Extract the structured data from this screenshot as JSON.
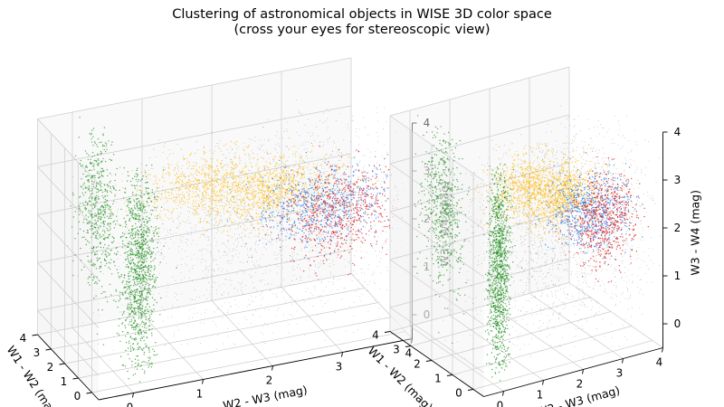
{
  "chart_data": {
    "type": "scatter",
    "projection": "3d",
    "title": "Clustering of astronomical objects in WISE 3D color space",
    "subtitle": "(cross your eyes for stereoscopic view)",
    "panels": 2,
    "grid": true,
    "xlabel": "W2 - W3 (mag)",
    "ylabel": "W1 - W2 (mag)",
    "zlabel": "W3 - W4 (mag)",
    "xlim": [
      -0.5,
      4
    ],
    "ylim": [
      -0.5,
      4
    ],
    "zlim": [
      -0.5,
      4
    ],
    "xticks": [
      "0",
      "1",
      "2",
      "3",
      "4"
    ],
    "yticks": [
      "0",
      "1",
      "2",
      "3",
      "4"
    ],
    "zticks": [
      "0",
      "1",
      "2",
      "3",
      "4"
    ],
    "series": [
      {
        "color": "#000000",
        "cx": 2.3,
        "cy": 0.6,
        "cz": 2.2,
        "sx": 1.3,
        "sy": 0.7,
        "sz": 1.3,
        "n": 2600,
        "opacity": 0.28,
        "r": 0.45
      },
      {
        "color": "#ffc020",
        "cx": 2.2,
        "cy": 1.1,
        "cz": 2.6,
        "sx": 0.5,
        "sy": 0.35,
        "sz": 0.3,
        "n": 900,
        "opacity": 0.75,
        "r": 0.7
      },
      {
        "color": "#ffc020",
        "cx": 1.2,
        "cy": 0.9,
        "cz": 3.1,
        "sx": 0.45,
        "sy": 0.3,
        "sz": 0.3,
        "n": 500,
        "opacity": 0.75,
        "r": 0.7
      },
      {
        "color": "#2a7ff0",
        "cx": 3.0,
        "cy": 1.1,
        "cz": 2.1,
        "sx": 0.45,
        "sy": 0.45,
        "sz": 0.35,
        "n": 650,
        "opacity": 0.8,
        "r": 0.7
      },
      {
        "color": "#e02020",
        "cx": 3.2,
        "cy": 0.8,
        "cz": 2.0,
        "sx": 0.4,
        "sy": 0.35,
        "sz": 0.45,
        "n": 650,
        "opacity": 0.8,
        "r": 0.7
      },
      {
        "color": "#1f8f1f",
        "cx": 0.2,
        "cy": 0.1,
        "cz": 1.8,
        "sx": 0.12,
        "sy": 0.12,
        "sz": 1.1,
        "n": 1100,
        "opacity": 0.75,
        "r": 0.7
      },
      {
        "color": "#1f8f1f",
        "cx": 0.1,
        "cy": 2.6,
        "cz": 2.4,
        "sx": 0.1,
        "sy": 0.45,
        "sz": 0.9,
        "n": 600,
        "opacity": 0.7,
        "r": 0.7
      }
    ]
  }
}
